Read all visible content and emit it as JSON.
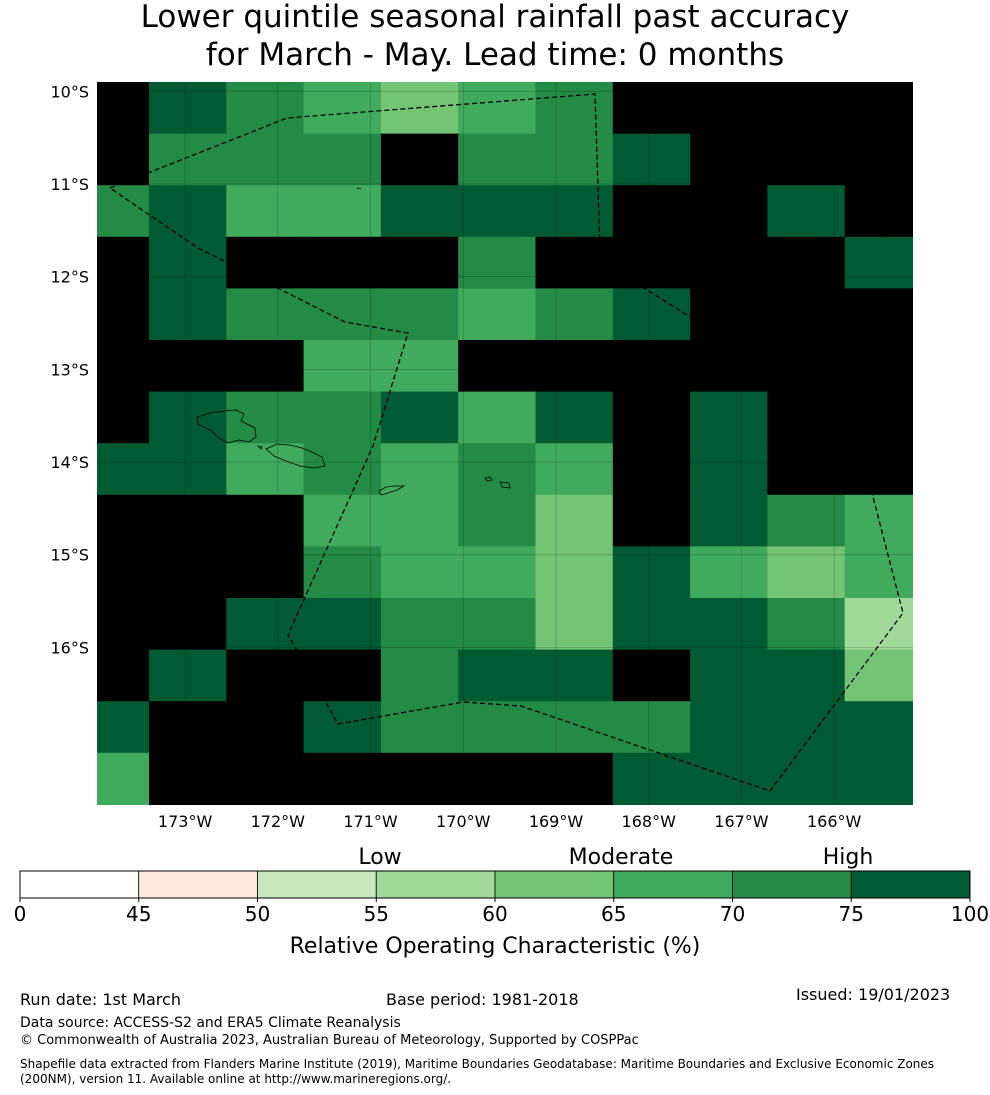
{
  "title": {
    "line1": "Lower quintile seasonal rainfall past accuracy",
    "line2": "for March - May. Lead time: 0 months"
  },
  "map": {
    "lat_labels": [
      "10°S",
      "11°S",
      "12°S",
      "13°S",
      "14°S",
      "15°S",
      "16°S"
    ],
    "lon_labels": [
      "173°W",
      "172°W",
      "171°W",
      "170°W",
      "169°W",
      "168°W",
      "167°W",
      "166°W"
    ],
    "grid_levels": [
      [
        8,
        7,
        6,
        5,
        4,
        5,
        6,
        8,
        8,
        8,
        8
      ],
      [
        8,
        6,
        6,
        6,
        8,
        6,
        6,
        7,
        8,
        8,
        8
      ],
      [
        6,
        7,
        5,
        5,
        7,
        7,
        7,
        8,
        8,
        7,
        8
      ],
      [
        8,
        7,
        8,
        8,
        8,
        6,
        8,
        8,
        8,
        8,
        7
      ],
      [
        8,
        7,
        6,
        6,
        6,
        5,
        6,
        7,
        8,
        8,
        8
      ],
      [
        8,
        8,
        8,
        5,
        5,
        8,
        8,
        8,
        8,
        8,
        8
      ],
      [
        8,
        7,
        6,
        6,
        7,
        5,
        7,
        8,
        7,
        8,
        8
      ],
      [
        7,
        7,
        5,
        6,
        5,
        6,
        5,
        8,
        7,
        8,
        8
      ],
      [
        8,
        8,
        8,
        5,
        5,
        6,
        4,
        8,
        7,
        6,
        5
      ],
      [
        8,
        8,
        8,
        6,
        5,
        5,
        4,
        7,
        5,
        4,
        5
      ],
      [
        8,
        8,
        7,
        7,
        6,
        6,
        4,
        7,
        7,
        6,
        3
      ],
      [
        8,
        7,
        8,
        8,
        6,
        7,
        7,
        8,
        7,
        7,
        4
      ],
      [
        7,
        8,
        8,
        7,
        6,
        6,
        6,
        6,
        7,
        7,
        7
      ],
      [
        5,
        8,
        8,
        8,
        8,
        8,
        8,
        7,
        7,
        7,
        7
      ]
    ]
  },
  "legend": {
    "category_labels": [
      "Low",
      "Moderate",
      "High"
    ],
    "tick_labels": [
      "0",
      "45",
      "50",
      "55",
      "60",
      "65",
      "70",
      "75",
      "100"
    ],
    "colors": [
      "#ffffff",
      "#fee8de",
      "#c7e9c0",
      "#a1d99b",
      "#74c476",
      "#41ab5d",
      "#238b45",
      "#005a32"
    ],
    "axis_label": "Relative Operating Characteristic (%)"
  },
  "footer": {
    "run_date": "Run date: 1st March",
    "base_period": "Base period: 1981-2018",
    "issued": "Issued: 19/01/2023",
    "data_source": "Data source: ACCESS-S2 and ERA5 Climate Reanalysis",
    "copyright": "© Commonwealth of Australia 2023, Australian Bureau of Meteorology, Supported by COSPPac",
    "shapefile_note": "Shapefile data extracted from Flanders Marine Institute (2019), Maritime Boundaries Geodatabase: Maritime Boundaries and Exclusive Economic Zones (200NM), version 11. Available online at http://www.marineregions.org/."
  }
}
